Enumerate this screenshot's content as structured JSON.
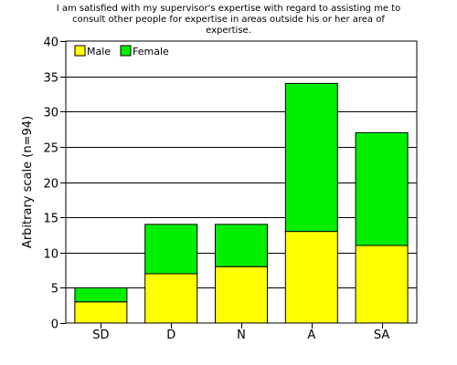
{
  "chart_data": {
    "type": "bar",
    "stacked": true,
    "title_lines": [
      "I am satisfied with my supervisor's expertise with regard to assisting me to",
      "consult other people for expertise in areas outside his or her area of",
      "expertise."
    ],
    "xlabel": "",
    "ylabel": "Arbitrary scale (n=94)",
    "categories": [
      "SD",
      "D",
      "N",
      "A",
      "SA"
    ],
    "series": [
      {
        "name": "Male",
        "color": "#ffff00",
        "values": [
          3,
          7,
          8,
          13,
          11
        ]
      },
      {
        "name": "Female",
        "color": "#00ee00",
        "values": [
          2,
          7,
          6,
          21,
          16
        ]
      }
    ],
    "ylim": [
      0,
      40
    ],
    "yticks": [
      0,
      5,
      10,
      15,
      20,
      25,
      30,
      35,
      40
    ],
    "grid": "horizontal",
    "legend": "top-left"
  }
}
